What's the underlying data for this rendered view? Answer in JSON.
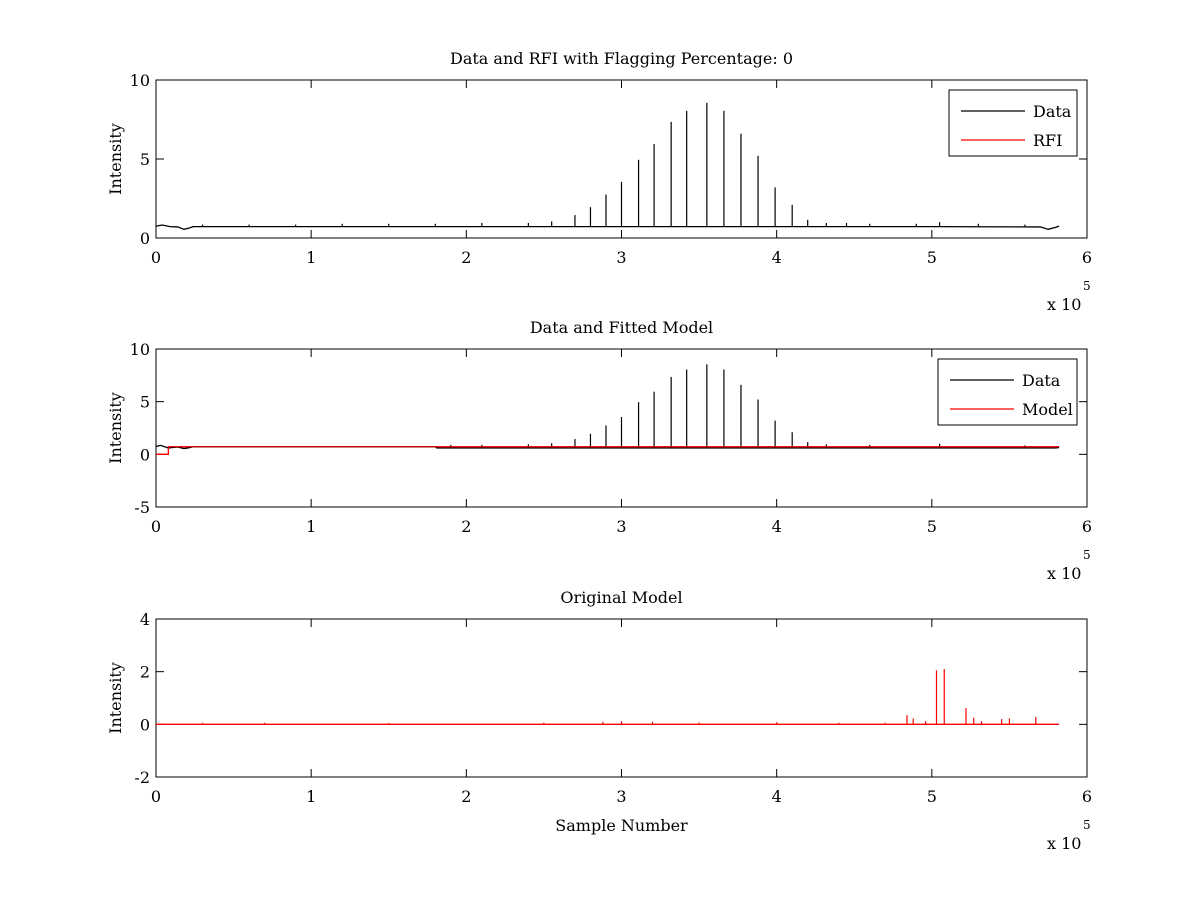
{
  "figure": {
    "background": "#ffffff"
  },
  "chart_data": [
    {
      "type": "line",
      "title": "Data and RFI with Flagging Percentage: 0",
      "xlabel": "",
      "ylabel": "Intensity",
      "xlim": [
        0,
        600000
      ],
      "ylim": [
        0,
        10
      ],
      "xticks": [
        0,
        1,
        2,
        3,
        4,
        5,
        6
      ],
      "xtick_labels": [
        "0",
        "1",
        "2",
        "3",
        "4",
        "5",
        "6"
      ],
      "yticks": [
        0,
        5,
        10
      ],
      "ytick_labels": [
        "0",
        "5",
        "10"
      ],
      "x_exponent": {
        "base": "x 10",
        "power": "5"
      },
      "grid": false,
      "legend": {
        "position": "top-right",
        "entries": [
          {
            "name": "Data",
            "color": "#000000"
          },
          {
            "name": "RFI",
            "color": "#ff0000"
          }
        ]
      },
      "baseline": [
        [
          0,
          0.75
        ],
        [
          4000,
          0.82
        ],
        [
          9000,
          0.72
        ],
        [
          14000,
          0.7
        ],
        [
          18000,
          0.55
        ],
        [
          21000,
          0.62
        ],
        [
          24000,
          0.72
        ],
        [
          100000,
          0.72
        ],
        [
          300000,
          0.72
        ],
        [
          500000,
          0.72
        ],
        [
          570000,
          0.7
        ],
        [
          575000,
          0.55
        ],
        [
          580000,
          0.68
        ],
        [
          582000,
          0.75
        ]
      ],
      "spikes": [
        {
          "x": 30000,
          "y": 0.85
        },
        {
          "x": 60000,
          "y": 0.85
        },
        {
          "x": 90000,
          "y": 0.85
        },
        {
          "x": 120000,
          "y": 0.9
        },
        {
          "x": 150000,
          "y": 0.9
        },
        {
          "x": 180000,
          "y": 0.9
        },
        {
          "x": 210000,
          "y": 0.95
        },
        {
          "x": 240000,
          "y": 0.95
        },
        {
          "x": 255000,
          "y": 1.05
        },
        {
          "x": 270000,
          "y": 1.45
        },
        {
          "x": 280000,
          "y": 1.95
        },
        {
          "x": 290000,
          "y": 2.75
        },
        {
          "x": 300000,
          "y": 3.55
        },
        {
          "x": 311000,
          "y": 4.95
        },
        {
          "x": 321000,
          "y": 5.95
        },
        {
          "x": 332000,
          "y": 7.35
        },
        {
          "x": 342000,
          "y": 8.05
        },
        {
          "x": 355000,
          "y": 8.55
        },
        {
          "x": 366000,
          "y": 8.05
        },
        {
          "x": 377000,
          "y": 6.6
        },
        {
          "x": 388000,
          "y": 5.2
        },
        {
          "x": 399000,
          "y": 3.2
        },
        {
          "x": 410000,
          "y": 2.1
        },
        {
          "x": 420000,
          "y": 1.15
        },
        {
          "x": 432000,
          "y": 0.95
        },
        {
          "x": 445000,
          "y": 0.95
        },
        {
          "x": 460000,
          "y": 0.9
        },
        {
          "x": 490000,
          "y": 0.9
        },
        {
          "x": 505000,
          "y": 1.0
        },
        {
          "x": 530000,
          "y": 0.9
        },
        {
          "x": 560000,
          "y": 0.85
        }
      ],
      "rfi": []
    },
    {
      "type": "line",
      "title": "Data and Fitted Model",
      "xlabel": "",
      "ylabel": "Intensity",
      "xlim": [
        0,
        600000
      ],
      "ylim": [
        -5,
        10
      ],
      "xticks": [
        0,
        1,
        2,
        3,
        4,
        5,
        6
      ],
      "xtick_labels": [
        "0",
        "1",
        "2",
        "3",
        "4",
        "5",
        "6"
      ],
      "yticks": [
        -5,
        0,
        5,
        10
      ],
      "ytick_labels": [
        "-5",
        "0",
        "5",
        "10"
      ],
      "x_exponent": {
        "base": "x 10",
        "power": "5"
      },
      "grid": false,
      "legend": {
        "position": "top-right",
        "entries": [
          {
            "name": "Data",
            "color": "#000000"
          },
          {
            "name": "Model",
            "color": "#ff0000"
          }
        ]
      },
      "baseline": [
        [
          0,
          0.75
        ],
        [
          3000,
          0.85
        ],
        [
          8000,
          0.6
        ],
        [
          14000,
          0.7
        ],
        [
          18000,
          0.55
        ],
        [
          21000,
          0.62
        ],
        [
          24000,
          0.72
        ],
        [
          180000,
          0.72
        ],
        [
          181000,
          0.6
        ],
        [
          580000,
          0.6
        ],
        [
          582000,
          0.65
        ]
      ],
      "spikes": [
        {
          "x": 190000,
          "y": 0.9
        },
        {
          "x": 210000,
          "y": 0.9
        },
        {
          "x": 240000,
          "y": 0.95
        },
        {
          "x": 255000,
          "y": 1.05
        },
        {
          "x": 270000,
          "y": 1.45
        },
        {
          "x": 280000,
          "y": 1.95
        },
        {
          "x": 290000,
          "y": 2.75
        },
        {
          "x": 300000,
          "y": 3.55
        },
        {
          "x": 311000,
          "y": 4.95
        },
        {
          "x": 321000,
          "y": 5.95
        },
        {
          "x": 332000,
          "y": 7.35
        },
        {
          "x": 342000,
          "y": 8.05
        },
        {
          "x": 355000,
          "y": 8.55
        },
        {
          "x": 366000,
          "y": 8.05
        },
        {
          "x": 377000,
          "y": 6.6
        },
        {
          "x": 388000,
          "y": 5.2
        },
        {
          "x": 399000,
          "y": 3.2
        },
        {
          "x": 410000,
          "y": 2.1
        },
        {
          "x": 420000,
          "y": 1.15
        },
        {
          "x": 432000,
          "y": 0.95
        },
        {
          "x": 460000,
          "y": 0.9
        },
        {
          "x": 505000,
          "y": 1.0
        },
        {
          "x": 560000,
          "y": 0.85
        }
      ],
      "model": [
        [
          0,
          0.0
        ],
        [
          8000,
          0.0
        ],
        [
          8000,
          0.72
        ],
        [
          582000,
          0.72
        ]
      ]
    },
    {
      "type": "line",
      "title": "Original Model",
      "xlabel": "Sample Number",
      "ylabel": "Intensity",
      "xlim": [
        0,
        600000
      ],
      "ylim": [
        -2,
        4
      ],
      "xticks": [
        0,
        1,
        2,
        3,
        4,
        5,
        6
      ],
      "xtick_labels": [
        "0",
        "1",
        "2",
        "3",
        "4",
        "5",
        "6"
      ],
      "yticks": [
        -2,
        0,
        2,
        4
      ],
      "ytick_labels": [
        "-2",
        "0",
        "2",
        "4"
      ],
      "x_exponent": {
        "base": "x 10",
        "power": "5"
      },
      "grid": false,
      "series": [
        {
          "name": "",
          "color": "#ff0000",
          "baseline": [
            [
              0,
              0.0
            ],
            [
              582000,
              0.0
            ]
          ],
          "spikes": [
            {
              "x": 30000,
              "y": 0.06
            },
            {
              "x": 70000,
              "y": 0.06
            },
            {
              "x": 150000,
              "y": 0.05
            },
            {
              "x": 250000,
              "y": 0.06
            },
            {
              "x": 288000,
              "y": 0.1
            },
            {
              "x": 300000,
              "y": 0.12
            },
            {
              "x": 320000,
              "y": 0.1
            },
            {
              "x": 350000,
              "y": 0.07
            },
            {
              "x": 400000,
              "y": 0.08
            },
            {
              "x": 440000,
              "y": 0.06
            },
            {
              "x": 470000,
              "y": 0.06
            },
            {
              "x": 484000,
              "y": 0.35
            },
            {
              "x": 488000,
              "y": 0.22
            },
            {
              "x": 496000,
              "y": 0.12
            },
            {
              "x": 503000,
              "y": 2.05
            },
            {
              "x": 508000,
              "y": 2.1
            },
            {
              "x": 522000,
              "y": 0.62
            },
            {
              "x": 527000,
              "y": 0.25
            },
            {
              "x": 532000,
              "y": 0.12
            },
            {
              "x": 545000,
              "y": 0.2
            },
            {
              "x": 550000,
              "y": 0.22
            },
            {
              "x": 567000,
              "y": 0.28
            }
          ]
        }
      ]
    }
  ]
}
